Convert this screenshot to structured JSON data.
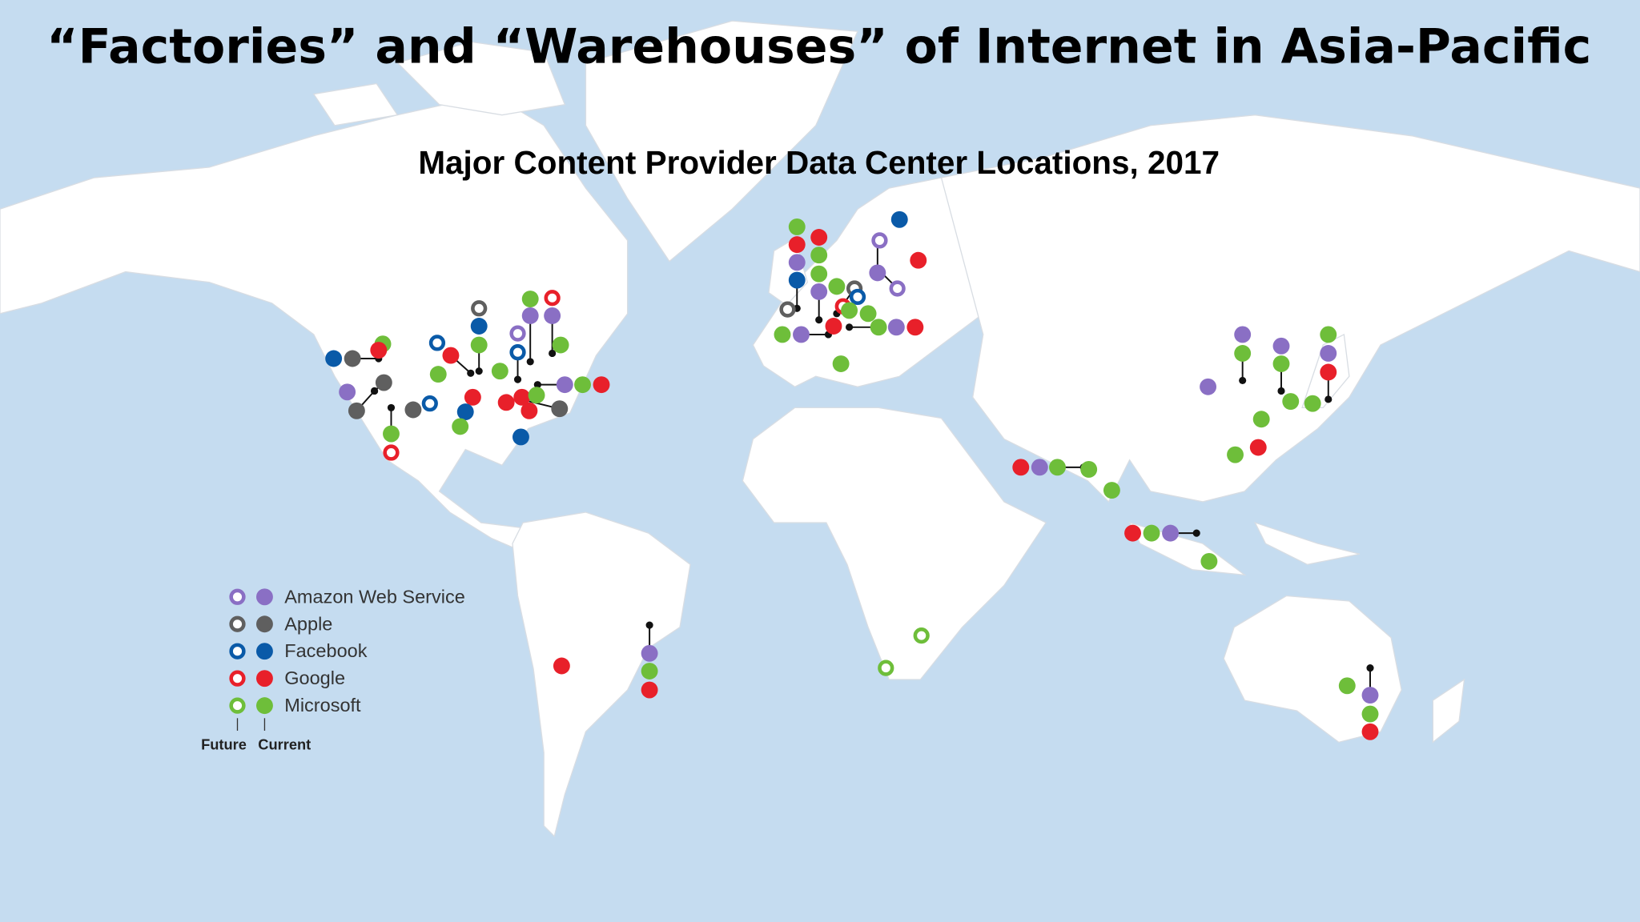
{
  "title": "“Factories” and “Warehouses” of Internet in Asia-Pacific",
  "subtitle": "Major Content Provider Data Center Locations, 2017",
  "legend": {
    "items": [
      {
        "label": "Amazon Web Service",
        "color": "#8a6fc4"
      },
      {
        "label": "Apple",
        "color": "#5f5f5f"
      },
      {
        "label": "Facebook",
        "color": "#0a5aa8"
      },
      {
        "label": "Google",
        "color": "#e8202a"
      },
      {
        "label": "Microsoft",
        "color": "#6ebe3a"
      }
    ],
    "future": "Future",
    "current": "Current"
  }
}
